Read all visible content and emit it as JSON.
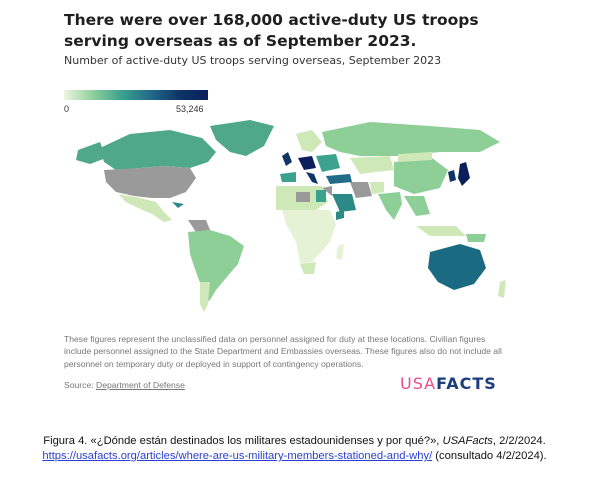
{
  "chart_data": {
    "type": "choropleth-map",
    "title": "There were over 168,000 active-duty US troops serving overseas as of September 2023.",
    "subtitle": "Number of active-duty US troops serving overseas, September 2023",
    "scale": {
      "min": 0,
      "max": 53246,
      "min_label": "0",
      "max_label": "53,246"
    },
    "colors": {
      "no_data": "#9a9a9a",
      "low": "#eef6e2",
      "mid": "#3aa28e",
      "high": "#0b1f5c"
    }
  },
  "note": "These figures represent the unclassified data on personnel assigned for duty at these locations. Civilian figures include personnel assigned to the State Department and Embassies overseas. These figures also do not include all personnel on temporary duty or deployed in support of contingency operations.",
  "source_label": "Source:",
  "source_link": "Department of Defense",
  "logo": {
    "part1": "USA",
    "part2": "FACTS"
  },
  "caption": {
    "line1_prefix": "Figura 4. «¿Dónde están destinados los militares estadounidenses y por qué?», ",
    "line1_italic": "USAFacts",
    "line1_suffix": ", 2/2/2024.",
    "link": "https://usafacts.org/articles/where-are-us-military-members-stationed-and-why/",
    "line2_suffix": " (consultado 4/2/2024)."
  }
}
